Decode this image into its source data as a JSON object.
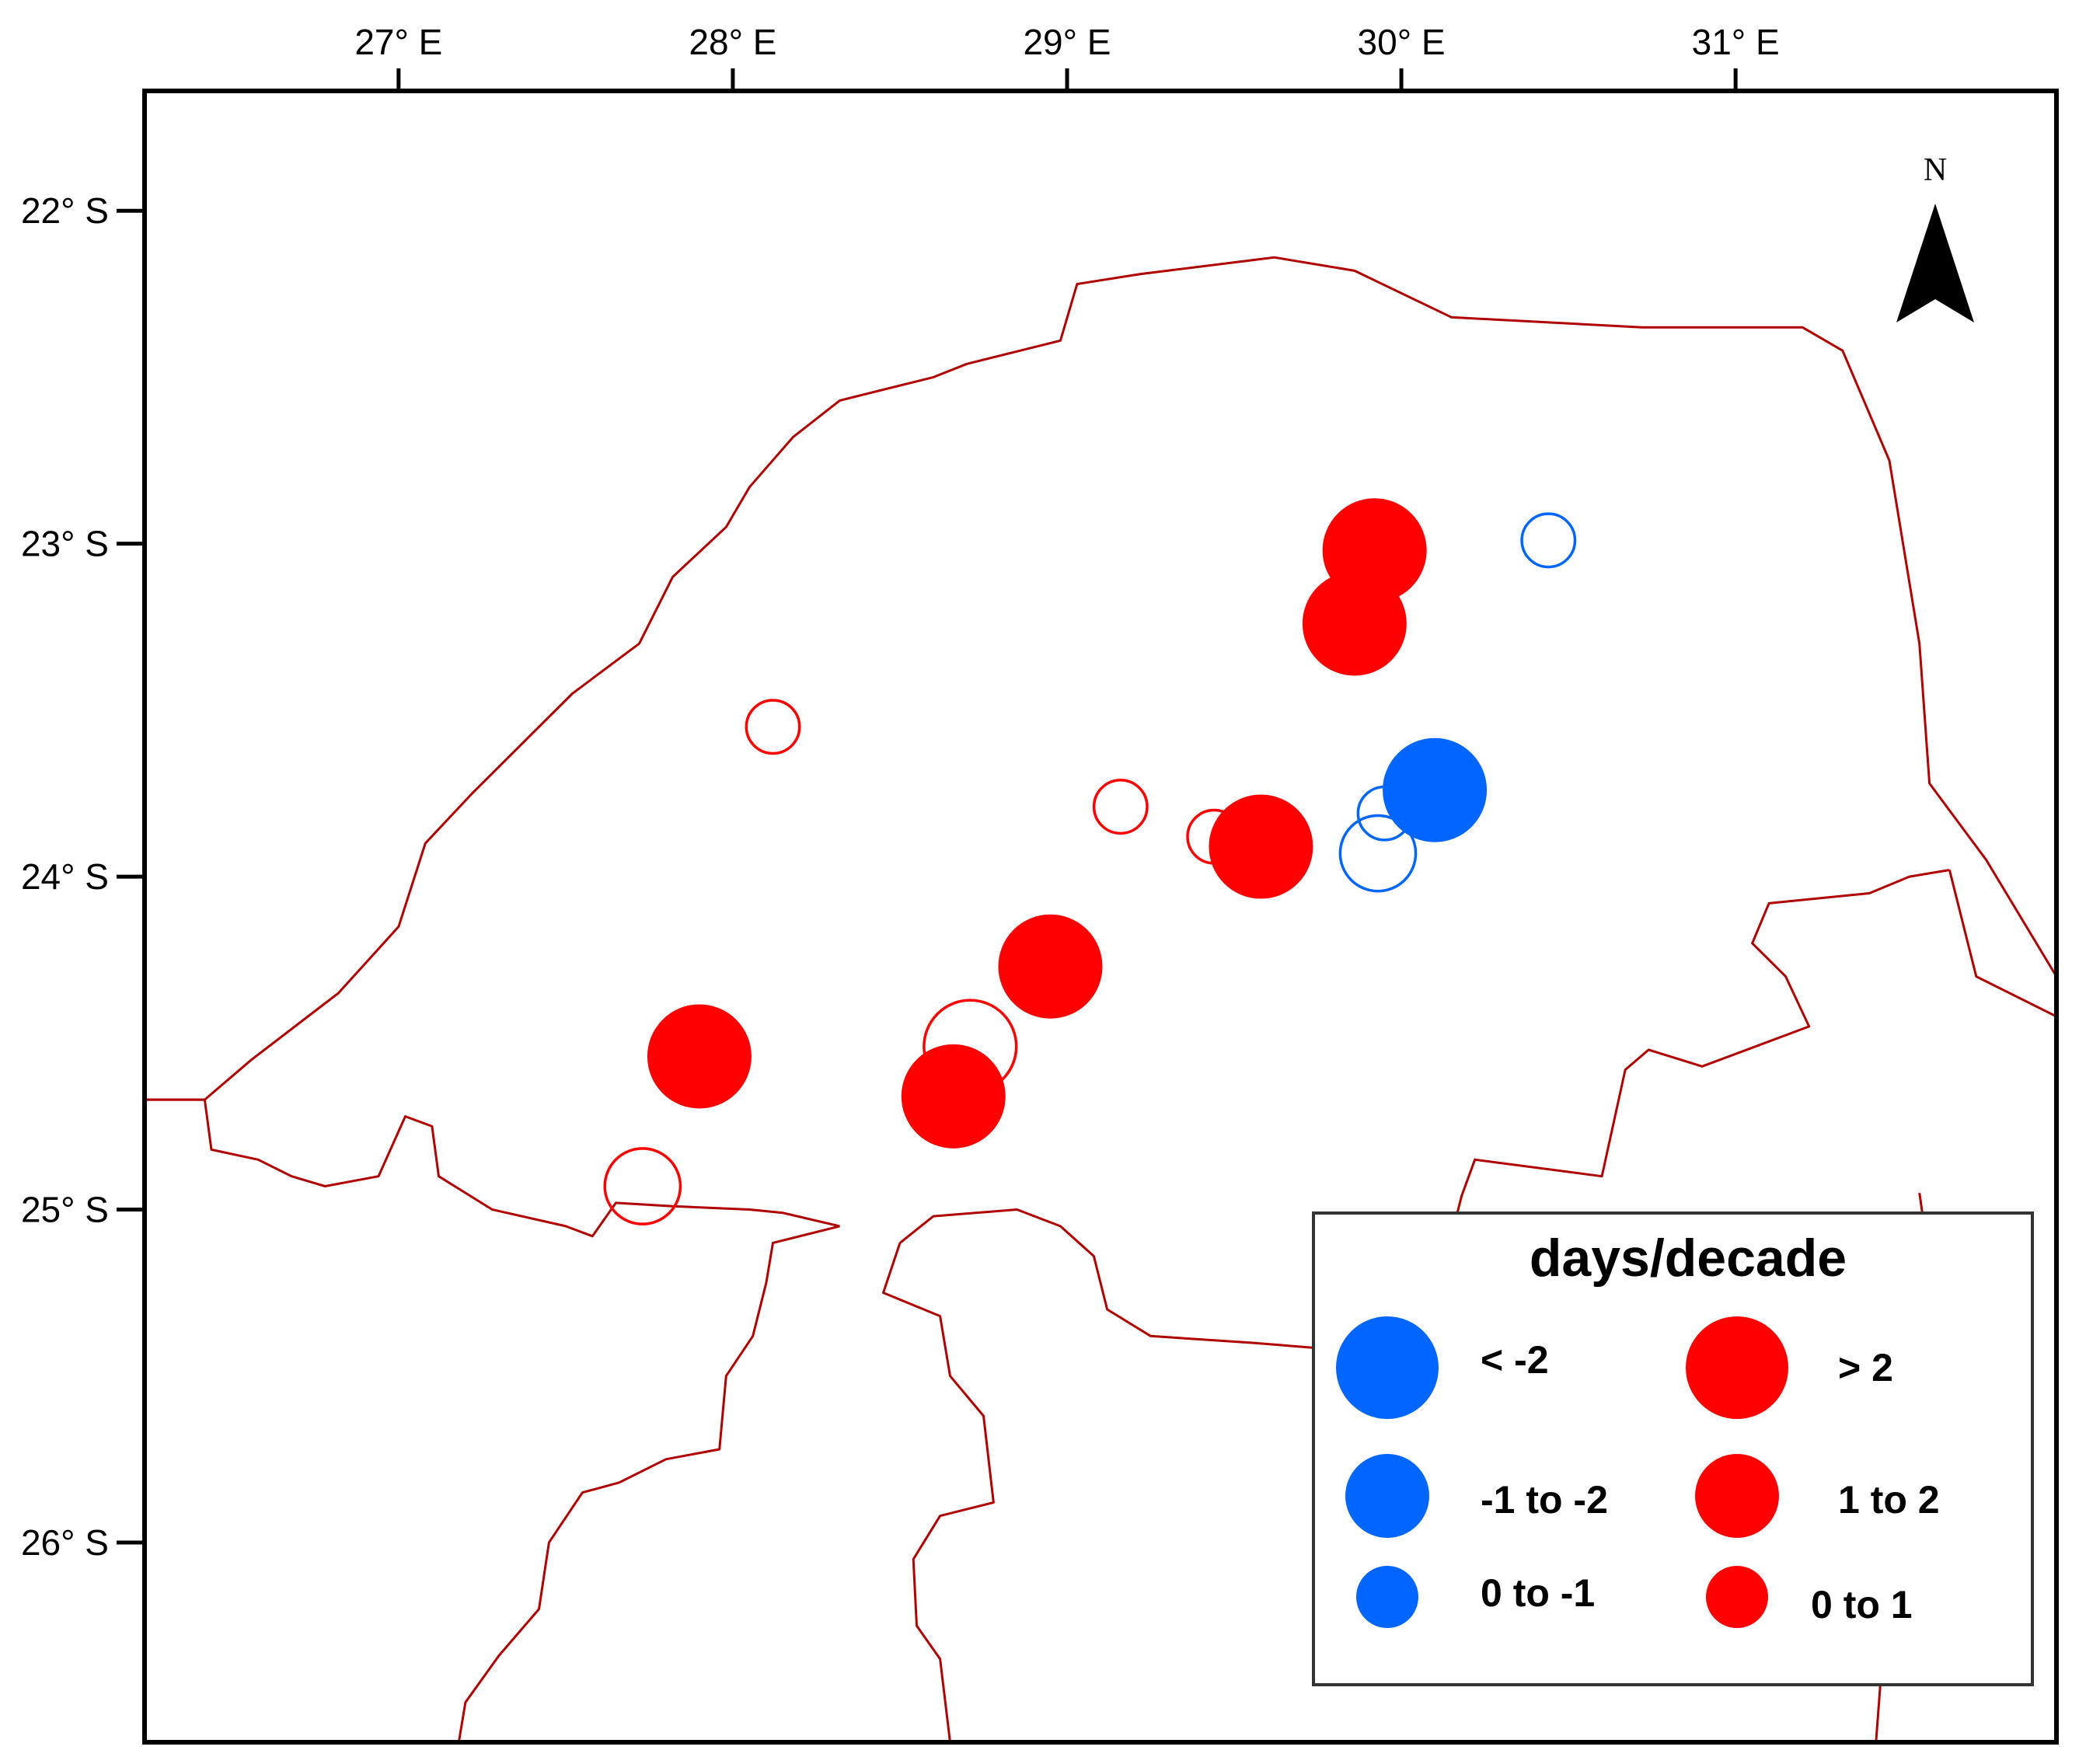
{
  "axes": {
    "x_ticks": [
      {
        "value": 27,
        "label": "27° E"
      },
      {
        "value": 28,
        "label": "28° E"
      },
      {
        "value": 29,
        "label": "29° E"
      },
      {
        "value": 30,
        "label": "30° E"
      },
      {
        "value": 31,
        "label": "31° E"
      }
    ],
    "y_ticks": [
      {
        "value": -22,
        "label": "22° S"
      },
      {
        "value": -23,
        "label": "23° S"
      },
      {
        "value": -24,
        "label": "24° S"
      },
      {
        "value": -25,
        "label": "25° S"
      },
      {
        "value": -26,
        "label": "26° S"
      }
    ],
    "lon_range": [
      26.24,
      31.96
    ],
    "lat_range": [
      -26.6,
      -21.64
    ]
  },
  "north_arrow": {
    "label": "N"
  },
  "legend": {
    "title": "days/decade",
    "placement": "bottom-right",
    "entries": [
      {
        "label": "< -2",
        "color": "#0066ff",
        "class": "large",
        "trend": "negative"
      },
      {
        "label": "> 2",
        "color": "#ff0000",
        "class": "large",
        "trend": "positive"
      },
      {
        "label": "-1 to -2",
        "color": "#0066ff",
        "class": "medium",
        "trend": "negative"
      },
      {
        "label": "1 to 2",
        "color": "#ff0000",
        "class": "medium",
        "trend": "positive"
      },
      {
        "label": "0 to -1",
        "color": "#0066ff",
        "class": "small",
        "trend": "negative"
      },
      {
        "label": "0 to 1",
        "color": "#ff0000",
        "class": "small",
        "trend": "positive"
      }
    ]
  },
  "colors": {
    "positive": "#ff0000",
    "negative": "#0066ff",
    "boundary": "#b00000"
  },
  "stations": [
    {
      "lon": 29.92,
      "lat": -23.02,
      "class": "large",
      "trend": "positive",
      "filled": true
    },
    {
      "lon": 29.86,
      "lat": -23.24,
      "class": "large",
      "trend": "positive",
      "filled": true
    },
    {
      "lon": 30.44,
      "lat": -22.99,
      "class": "small",
      "trend": "negative",
      "filled": false
    },
    {
      "lon": 28.12,
      "lat": -23.55,
      "class": "small",
      "trend": "positive",
      "filled": false
    },
    {
      "lon": 29.16,
      "lat": -23.79,
      "class": "small",
      "trend": "positive",
      "filled": false
    },
    {
      "lon": 29.44,
      "lat": -23.88,
      "class": "small",
      "trend": "positive",
      "filled": false
    },
    {
      "lon": 29.58,
      "lat": -23.91,
      "class": "large",
      "trend": "positive",
      "filled": true
    },
    {
      "lon": 30.1,
      "lat": -23.74,
      "class": "large",
      "trend": "negative",
      "filled": true
    },
    {
      "lon": 29.95,
      "lat": -23.81,
      "class": "small",
      "trend": "negative",
      "filled": false
    },
    {
      "lon": 29.93,
      "lat": -23.93,
      "class": "medium",
      "trend": "negative",
      "filled": false
    },
    {
      "lon": 28.95,
      "lat": -24.27,
      "class": "large",
      "trend": "positive",
      "filled": true
    },
    {
      "lon": 28.71,
      "lat": -24.51,
      "class": "large",
      "trend": "positive",
      "filled": false
    },
    {
      "lon": 28.66,
      "lat": -24.66,
      "class": "large",
      "trend": "positive",
      "filled": true
    },
    {
      "lon": 27.9,
      "lat": -24.54,
      "class": "large",
      "trend": "positive",
      "filled": true
    },
    {
      "lon": 27.73,
      "lat": -24.93,
      "class": "medium",
      "trend": "positive",
      "filled": false
    }
  ],
  "outer_boundary": [
    [
      26.24,
      -24.67
    ],
    [
      26.42,
      -24.67
    ],
    [
      26.56,
      -24.55
    ],
    [
      26.82,
      -24.35
    ],
    [
      27.0,
      -24.15
    ],
    [
      27.08,
      -23.9
    ],
    [
      27.22,
      -23.75
    ],
    [
      27.52,
      -23.45
    ],
    [
      27.72,
      -23.3
    ],
    [
      27.82,
      -23.1
    ],
    [
      27.98,
      -22.95
    ],
    [
      28.05,
      -22.83
    ],
    [
      28.18,
      -22.68
    ],
    [
      28.32,
      -22.57
    ],
    [
      28.6,
      -22.5
    ],
    [
      28.7,
      -22.46
    ],
    [
      28.98,
      -22.39
    ],
    [
      29.03,
      -22.22
    ],
    [
      29.22,
      -22.19
    ],
    [
      29.62,
      -22.14
    ],
    [
      29.86,
      -22.18
    ],
    [
      30.15,
      -22.32
    ],
    [
      30.72,
      -22.35
    ],
    [
      31.2,
      -22.35
    ],
    [
      31.32,
      -22.42
    ],
    [
      31.46,
      -22.75
    ],
    [
      31.55,
      -23.3
    ],
    [
      31.58,
      -23.72
    ],
    [
      31.75,
      -23.95
    ],
    [
      31.96,
      -24.3
    ]
  ],
  "inner_boundary_1": [
    [
      26.24,
      -24.67
    ],
    [
      26.42,
      -24.67
    ],
    [
      26.44,
      -24.82
    ],
    [
      26.58,
      -24.85
    ],
    [
      26.68,
      -24.9
    ],
    [
      26.78,
      -24.93
    ],
    [
      26.94,
      -24.9
    ],
    [
      27.02,
      -24.72
    ],
    [
      27.1,
      -24.75
    ],
    [
      27.12,
      -24.9
    ],
    [
      27.28,
      -25.0
    ],
    [
      27.5,
      -25.05
    ],
    [
      27.58,
      -25.08
    ],
    [
      27.65,
      -24.98
    ],
    [
      27.82,
      -24.99
    ],
    [
      28.05,
      -25.0
    ],
    [
      28.15,
      -25.01
    ],
    [
      28.32,
      -25.05
    ]
  ],
  "inner_boundary_2": [
    [
      31.64,
      -23.98
    ],
    [
      31.52,
      -24.0
    ],
    [
      31.4,
      -24.05
    ],
    [
      31.1,
      -24.08
    ],
    [
      31.05,
      -24.2
    ],
    [
      31.15,
      -24.3
    ],
    [
      31.22,
      -24.45
    ],
    [
      30.9,
      -24.57
    ],
    [
      30.74,
      -24.52
    ],
    [
      30.67,
      -24.58
    ],
    [
      30.6,
      -24.9
    ],
    [
      30.22,
      -24.85
    ],
    [
      30.18,
      -24.96
    ],
    [
      30.12,
      -25.2
    ],
    [
      29.95,
      -25.42
    ],
    [
      29.8,
      -25.42
    ],
    [
      29.55,
      -25.4
    ],
    [
      29.25,
      -25.38
    ],
    [
      29.12,
      -25.3
    ],
    [
      29.08,
      -25.14
    ],
    [
      28.98,
      -25.05
    ],
    [
      28.85,
      -25.0
    ],
    [
      28.6,
      -25.02
    ],
    [
      28.5,
      -25.1
    ]
  ],
  "inner_boundary_3": [
    [
      28.32,
      -25.05
    ],
    [
      28.12,
      -25.1
    ],
    [
      28.1,
      -25.22
    ],
    [
      28.06,
      -25.38
    ],
    [
      27.98,
      -25.5
    ],
    [
      27.96,
      -25.72
    ],
    [
      27.8,
      -25.75
    ],
    [
      27.66,
      -25.82
    ],
    [
      27.55,
      -25.85
    ],
    [
      27.45,
      -26.0
    ],
    [
      27.42,
      -26.2
    ],
    [
      27.3,
      -26.34
    ],
    [
      27.2,
      -26.48
    ],
    [
      27.18,
      -26.6
    ]
  ],
  "inner_boundary_4": [
    [
      28.5,
      -25.1
    ],
    [
      28.45,
      -25.25
    ],
    [
      28.62,
      -25.32
    ],
    [
      28.65,
      -25.5
    ],
    [
      28.75,
      -25.62
    ],
    [
      28.78,
      -25.88
    ],
    [
      28.62,
      -25.92
    ],
    [
      28.54,
      -26.05
    ],
    [
      28.55,
      -26.25
    ],
    [
      28.62,
      -26.35
    ],
    [
      28.65,
      -26.6
    ]
  ],
  "inner_boundary_5": [
    [
      31.64,
      -23.98
    ],
    [
      31.72,
      -24.3
    ],
    [
      31.96,
      -24.42
    ]
  ],
  "inner_boundary_6": [
    [
      31.55,
      -24.95
    ],
    [
      31.6,
      -25.3
    ],
    [
      31.62,
      -25.58
    ],
    [
      31.55,
      -25.9
    ],
    [
      31.45,
      -26.2
    ],
    [
      31.42,
      -26.6
    ]
  ]
}
